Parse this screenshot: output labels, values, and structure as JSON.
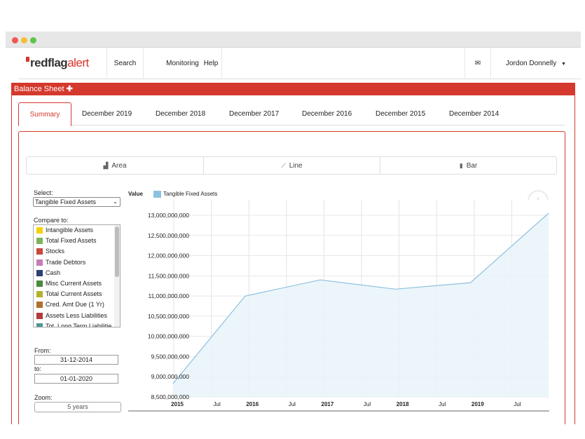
{
  "app": {
    "logo_main": "redflag",
    "logo_accent": "alert"
  },
  "nav": {
    "items": [
      "Search",
      "Monitoring",
      "Help"
    ],
    "user": "Jordon Donnelly"
  },
  "section": {
    "title": "Balance Sheet"
  },
  "tabs": [
    "Summary",
    "December 2019",
    "December 2018",
    "December 2017",
    "December 2016",
    "December 2015",
    "December 2014"
  ],
  "chart_types": [
    "Area",
    "Line",
    "Bar"
  ],
  "controls": {
    "select_label": "Select:",
    "selected": "Tangible Fixed Assets",
    "compare_label": "Compare to:",
    "compare_items": [
      {
        "label": "Intangible Assets",
        "color": "#f5d20a"
      },
      {
        "label": "Total Fixed Assets",
        "color": "#7cb45c"
      },
      {
        "label": "Stocks",
        "color": "#c9473d"
      },
      {
        "label": "Trade Debtors",
        "color": "#c77cb7"
      },
      {
        "label": "Cash",
        "color": "#2b3f73"
      },
      {
        "label": "Misc Current Assets",
        "color": "#4a8a3a"
      },
      {
        "label": "Total Current Assets",
        "color": "#b2b42e"
      },
      {
        "label": "Cred. Amt Due (1 Yr)",
        "color": "#b0702e"
      },
      {
        "label": "Assets Less Liabilities",
        "color": "#b33b3b"
      },
      {
        "label": "Tot. Long Term Liabilitie",
        "color": "#4a9a94"
      }
    ],
    "from_label": "From:",
    "from_value": "31-12-2014",
    "to_label": "to:",
    "to_value": "01-01-2020",
    "zoom_label": "Zoom:",
    "zoom_value": "5 years"
  },
  "chart_data": {
    "type": "area",
    "title": "",
    "ylabel": "Value",
    "series": [
      {
        "name": "Tangible Fixed Assets",
        "color": "#8ec1e0",
        "points": [
          [
            2014.99,
            8830000000
          ],
          [
            2015.95,
            11000000000
          ],
          [
            2016.95,
            11400000000
          ],
          [
            2017.95,
            11170000000
          ],
          [
            2018.95,
            11330000000
          ],
          [
            2019.99,
            13050000000
          ]
        ]
      }
    ],
    "yticks": [
      8500000000,
      9000000000,
      9500000000,
      10000000000,
      10500000000,
      11000000000,
      11500000000,
      12000000000,
      12500000000,
      13000000000
    ],
    "ytick_labels": [
      "8,500,000,000",
      "9,000,000,000",
      "9,500,000,000",
      "10,000,000,000",
      "10,500,000,000",
      "11,000,000,000",
      "11,500,000,000",
      "12,000,000,000",
      "12,500,000,000",
      "13,000,000,000"
    ],
    "ylim": [
      8500000000,
      13000000000
    ],
    "xticks": [
      {
        "v": 2015.0,
        "label": "2015",
        "bold": true
      },
      {
        "v": 2015.5,
        "label": "Jul",
        "bold": false
      },
      {
        "v": 2016.0,
        "label": "2016",
        "bold": true
      },
      {
        "v": 2016.5,
        "label": "Jul",
        "bold": false
      },
      {
        "v": 2017.0,
        "label": "2017",
        "bold": true
      },
      {
        "v": 2017.5,
        "label": "Jul",
        "bold": false
      },
      {
        "v": 2018.0,
        "label": "2018",
        "bold": true
      },
      {
        "v": 2018.5,
        "label": "Jul",
        "bold": false
      },
      {
        "v": 2019.0,
        "label": "2019",
        "bold": true
      },
      {
        "v": 2019.5,
        "label": "Jul",
        "bold": false
      }
    ],
    "xlim": [
      2014.99,
      2020.0
    ],
    "grid": true
  }
}
